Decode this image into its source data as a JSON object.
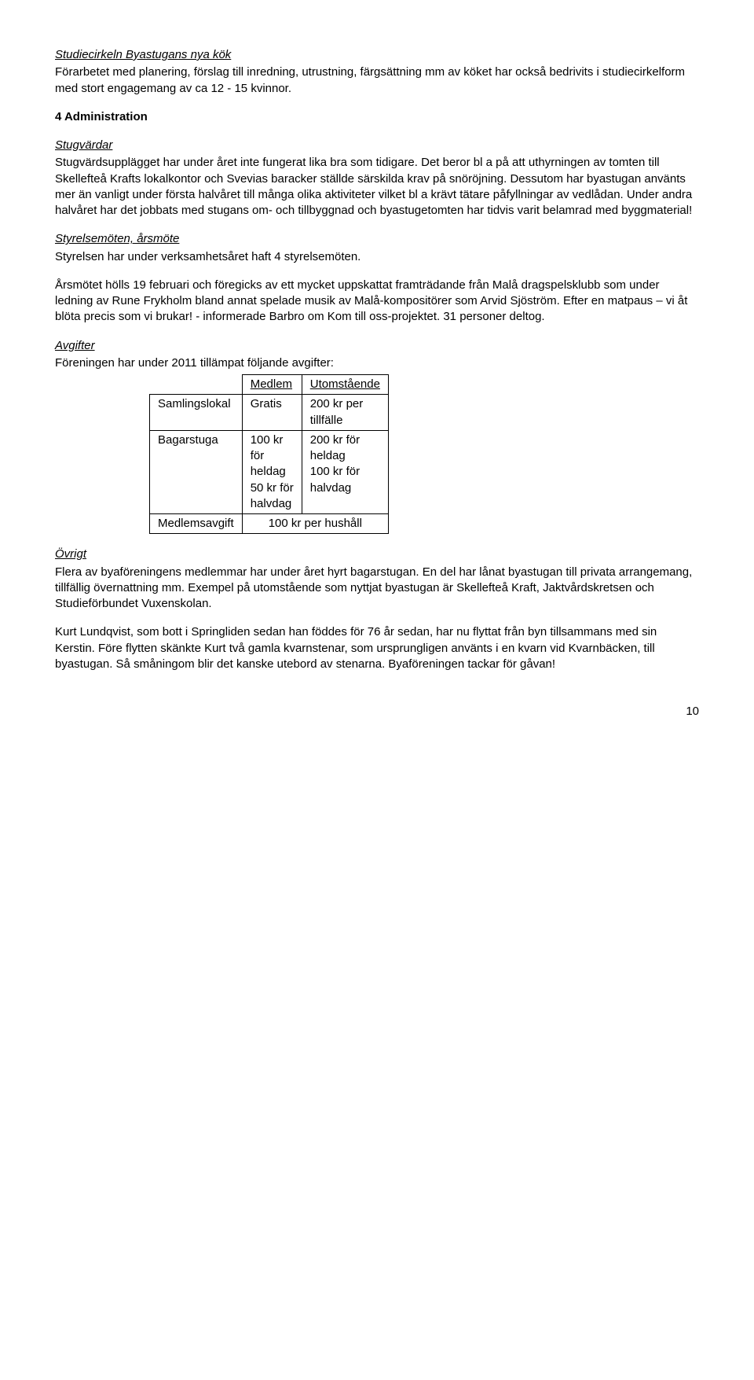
{
  "s1": {
    "heading": "Studiecirkeln Byastugans nya kök",
    "body": "Förarbetet med planering, förslag till inredning, utrustning, färgsättning mm av köket har också bedrivits i studiecirkelform med stort engagemang av ca 12 - 15 kvinnor."
  },
  "admin_heading": "4 Administration",
  "s2": {
    "heading": "Stugvärdar",
    "body": "Stugvärdsupplägget har under året inte fungerat lika bra som tidigare. Det beror bl a på att uthyrningen av tomten till Skellefteå Krafts lokalkontor och Svevias baracker ställde särskilda krav på snöröjning. Dessutom har byastugan använts mer än vanligt under första halvåret till många olika aktiviteter vilket bl a krävt tätare påfyllningar av vedlådan. Under andra halvåret har det jobbats med stugans om- och tillbyggnad och byastugetomten har tidvis varit belamrad med byggmaterial!"
  },
  "s3": {
    "heading": "Styrelsemöten, årsmöte",
    "p1": "Styrelsen har under verksamhetsåret haft 4 styrelsemöten.",
    "p2": "Årsmötet hölls 19 februari och föregicks av ett mycket uppskattat framträdande från Malå dragspelsklubb som under ledning av Rune Frykholm bland annat spelade musik av Malå-kompositörer som Arvid Sjöström. Efter en matpaus – vi åt blöta precis som vi brukar! -  informerade Barbro om Kom till oss-projektet. 31 personer deltog."
  },
  "s4": {
    "heading": "Avgifter",
    "intro": "Föreningen har under 2011 tillämpat följande avgifter:"
  },
  "fees": {
    "col_member": "Medlem",
    "col_other": "Utomstående",
    "row1_label": "Samlingslokal",
    "row1_member": "Gratis",
    "row1_other": "200 kr per tillfälle",
    "row2_label": "Bagarstuga",
    "row2_member": "100 kr för heldag 50 kr för halvdag",
    "row2_other": "200 kr för heldag 100 kr för halvdag",
    "row3_label": "Medlemsavgift",
    "row3_value": "100 kr per hushåll"
  },
  "s5": {
    "heading": "Övrigt",
    "p1": "Flera av byaföreningens medlemmar har under året hyrt bagarstugan. En del har lånat byastugan till privata arrangemang, tillfällig övernattning mm. Exempel på utomstående som nyttjat byastugan är Skellefteå Kraft, Jaktvårdskretsen och Studieförbundet Vuxenskolan.",
    "p2": "Kurt Lundqvist, som bott i Springliden sedan han föddes för 76 år sedan, har nu flyttat från byn tillsammans med sin Kerstin. Före flytten skänkte Kurt två gamla kvarnstenar, som ursprungligen använts i en kvarn vid Kvarnbäcken, till byastugan. Så småningom blir det kanske utebord av stenarna. Byaföreningen tackar för gåvan!"
  },
  "page_number": "10"
}
